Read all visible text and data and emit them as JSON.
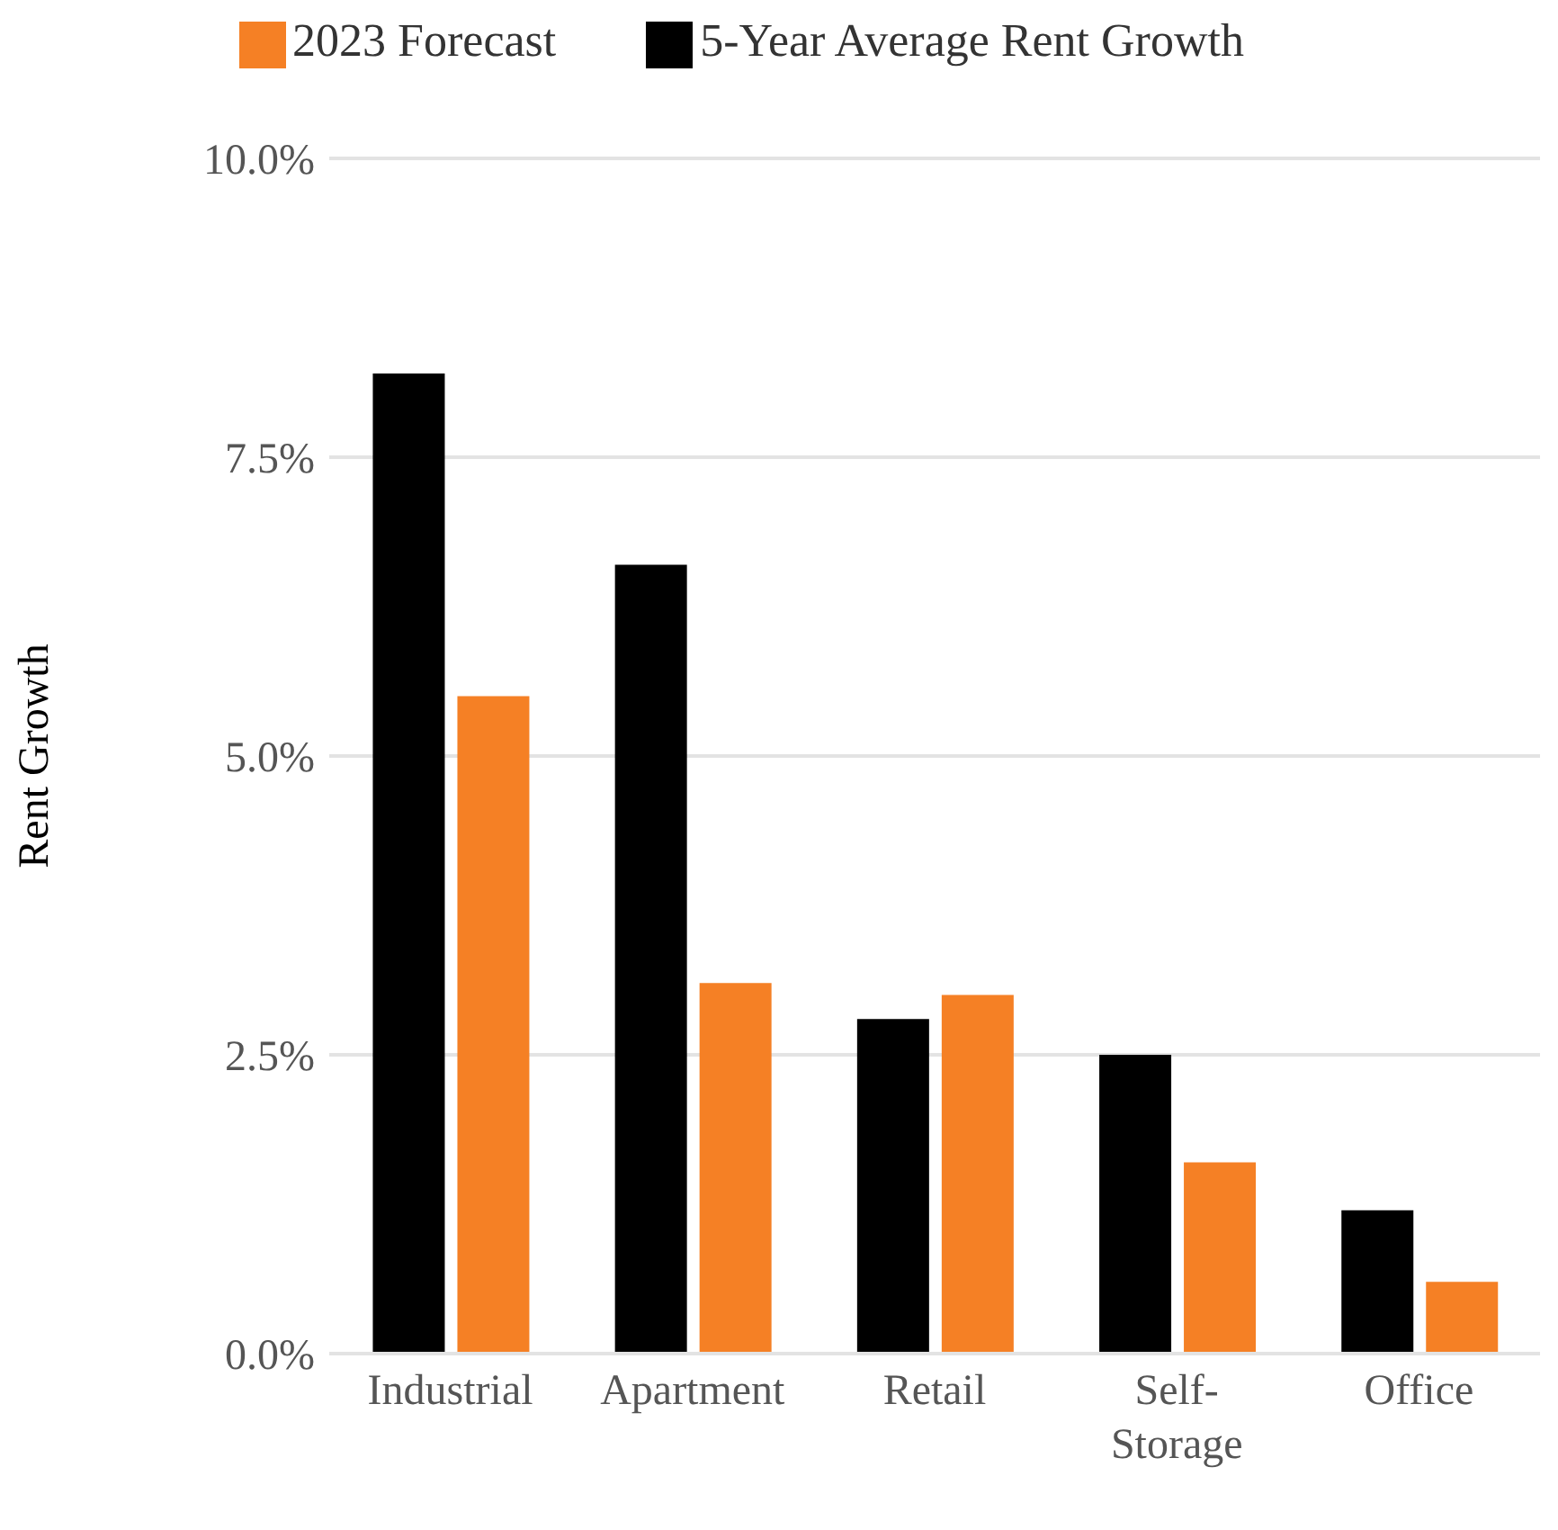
{
  "chart_data": {
    "type": "bar",
    "ylabel": "Rent Growth",
    "categories": [
      "Industrial",
      "Apartment",
      "Retail",
      "Self-Storage",
      "Office"
    ],
    "series": [
      {
        "name": "5-Year Average Rent Growth",
        "color": "#000000",
        "values": [
          8.2,
          6.6,
          2.8,
          2.5,
          1.2
        ]
      },
      {
        "name": "2023 Forecast",
        "color": "#f58025",
        "values": [
          5.5,
          3.1,
          3.0,
          1.6,
          0.6
        ]
      }
    ],
    "ylim": [
      0,
      10
    ],
    "yticks": [
      {
        "value": 0,
        "label": "0.0%"
      },
      {
        "value": 2.5,
        "label": "2.5%"
      },
      {
        "value": 5,
        "label": "5.0%"
      },
      {
        "value": 7.5,
        "label": "7.5%"
      },
      {
        "value": 10,
        "label": "10.0%"
      }
    ],
    "grid": "y",
    "legend": "top"
  }
}
